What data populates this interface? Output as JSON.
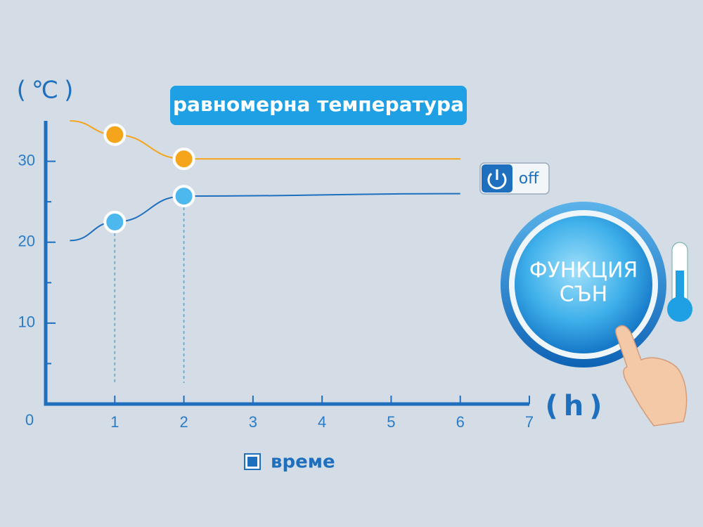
{
  "chart_data": {
    "type": "line",
    "title": "равномерна температура",
    "y_label": "(℃)",
    "x_label": "(h)",
    "legend": "време",
    "toggle_label": "off",
    "button_label": [
      "ФУНКЦИЯ",
      "СЪН"
    ],
    "xlim": [
      0,
      7
    ],
    "ylim": [
      0,
      35
    ],
    "xticks": [
      1,
      2,
      3,
      4,
      5,
      6,
      7
    ],
    "yticks": [
      0,
      10,
      20,
      30
    ],
    "minor_yticks": [
      5,
      15,
      25
    ],
    "x": [
      0.35,
      1,
      2,
      6
    ],
    "series": [
      {
        "color": "#f5a51c",
        "values": [
          35,
          33.3,
          30.3,
          30.3
        ]
      },
      {
        "color": "#1f6fbf",
        "values": [
          20.2,
          22.5,
          25.7,
          26
        ]
      }
    ],
    "marked_points": [
      1,
      2
    ]
  }
}
